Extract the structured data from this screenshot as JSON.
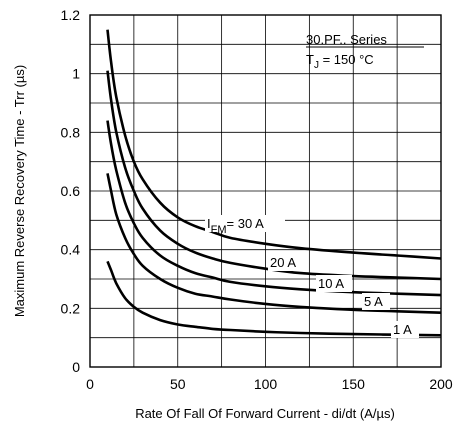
{
  "chart_data": {
    "type": "line",
    "title": "",
    "xlabel": "Rate Of Fall Of Forward Current - di/dt (A/µs)",
    "ylabel": "Maximum Reverse Recovery Time - Trr (µs)",
    "xlim": [
      0,
      200
    ],
    "ylim": [
      0,
      1.2
    ],
    "xticks": [
      "0",
      "50",
      "100",
      "150",
      "200"
    ],
    "yticks": [
      "0",
      "0.2",
      "0.4",
      "0.6",
      "0.8",
      "1",
      "1.2"
    ],
    "grid": true,
    "annotation_lines": [
      "30.PF.. Series",
      "T",
      "J",
      " = 150 °C"
    ],
    "series": [
      {
        "name": "I FM = 30 A",
        "label_main": "I",
        "label_sub": "FM",
        "label_rest": "= 30 A",
        "x": [
          10,
          12,
          15,
          20,
          25,
          30,
          40,
          50,
          60,
          70,
          80,
          100,
          120,
          150,
          175,
          200
        ],
        "y": [
          1.15,
          1.04,
          0.92,
          0.79,
          0.7,
          0.64,
          0.56,
          0.51,
          0.48,
          0.46,
          0.44,
          0.42,
          0.405,
          0.39,
          0.38,
          0.37
        ]
      },
      {
        "name": "20 A",
        "label_main": "20 A",
        "x": [
          10,
          12,
          15,
          20,
          25,
          30,
          40,
          50,
          60,
          70,
          80,
          100,
          120,
          150,
          175,
          200
        ],
        "y": [
          1.01,
          0.91,
          0.8,
          0.68,
          0.6,
          0.54,
          0.465,
          0.42,
          0.39,
          0.37,
          0.355,
          0.335,
          0.32,
          0.31,
          0.305,
          0.3
        ]
      },
      {
        "name": "10 A",
        "label_main": "10 A",
        "x": [
          10,
          12,
          15,
          20,
          25,
          30,
          40,
          50,
          60,
          70,
          80,
          100,
          120,
          150,
          175,
          200
        ],
        "y": [
          0.84,
          0.76,
          0.67,
          0.56,
          0.49,
          0.44,
          0.38,
          0.345,
          0.32,
          0.305,
          0.29,
          0.275,
          0.265,
          0.255,
          0.25,
          0.245
        ]
      },
      {
        "name": "5 A",
        "label_main": "5 A",
        "x": [
          10,
          12,
          15,
          20,
          25,
          30,
          40,
          50,
          60,
          70,
          80,
          100,
          120,
          150,
          175,
          200
        ],
        "y": [
          0.66,
          0.6,
          0.52,
          0.44,
          0.385,
          0.345,
          0.3,
          0.27,
          0.25,
          0.24,
          0.23,
          0.215,
          0.205,
          0.195,
          0.19,
          0.185
        ]
      },
      {
        "name": "1 A",
        "label_main": "1 A",
        "x": [
          10,
          12,
          15,
          20,
          25,
          30,
          40,
          50,
          60,
          70,
          80,
          100,
          120,
          150,
          175,
          200
        ],
        "y": [
          0.36,
          0.33,
          0.285,
          0.235,
          0.205,
          0.185,
          0.16,
          0.145,
          0.137,
          0.13,
          0.126,
          0.12,
          0.116,
          0.112,
          0.11,
          0.108
        ]
      }
    ]
  }
}
